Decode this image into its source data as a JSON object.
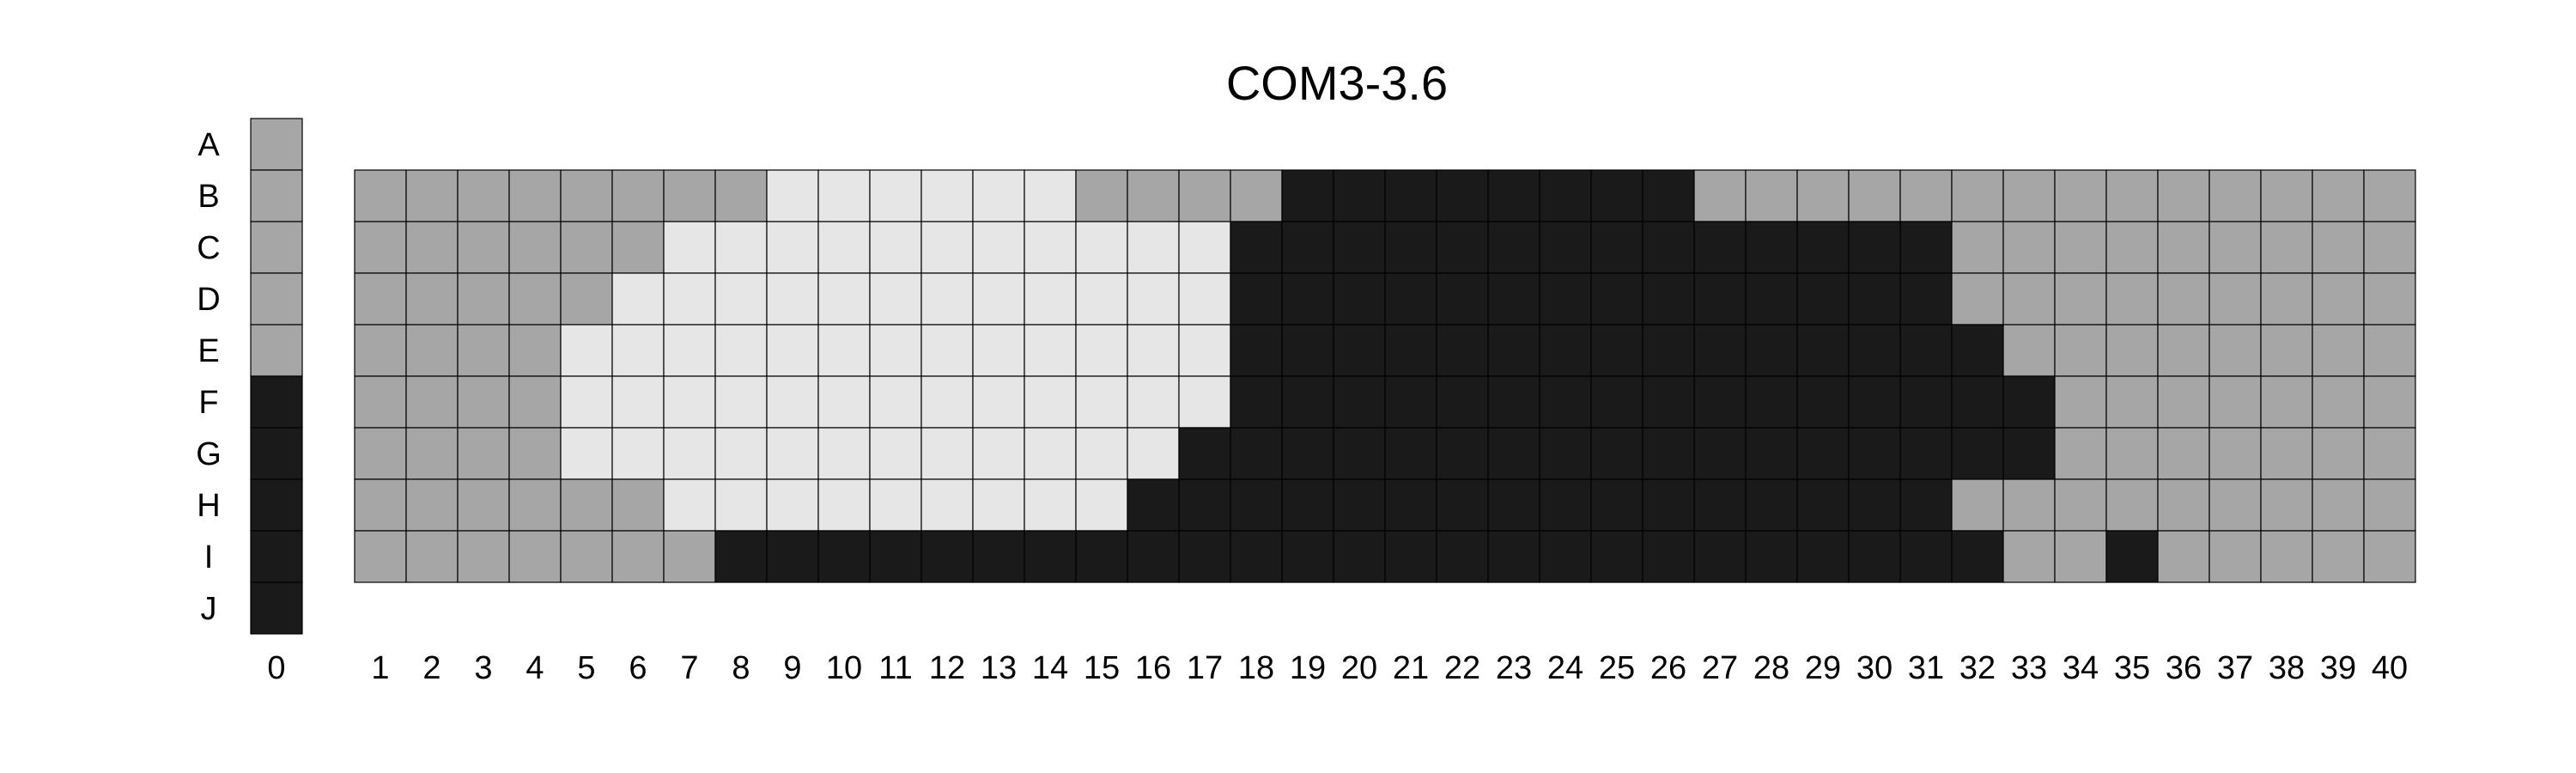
{
  "chart_data": {
    "type": "heatmap",
    "title": "COM3-3.6",
    "rows": [
      "A",
      "B",
      "C",
      "D",
      "E",
      "F",
      "G",
      "H",
      "I",
      "J"
    ],
    "columns": [
      0,
      1,
      2,
      3,
      4,
      5,
      6,
      7,
      8,
      9,
      10,
      11,
      12,
      13,
      14,
      15,
      16,
      17,
      18,
      19,
      20,
      21,
      22,
      23,
      24,
      25,
      26,
      27,
      28,
      29,
      30,
      31,
      32,
      33,
      34,
      35,
      36,
      37,
      38,
      39,
      40
    ],
    "levels": {
      "M": "#a6a6a6",
      "L": "#e6e6e6",
      "D": "#1a1a1a"
    },
    "column0": [
      "M",
      "M",
      "M",
      "M",
      "M",
      "D",
      "D",
      "D",
      "D",
      "D"
    ],
    "grid_rows": [
      "B",
      "C",
      "D",
      "E",
      "F",
      "G",
      "H",
      "I"
    ],
    "grid": [
      "MMMMMMMMLLLLLLMMMMDDDDDDDDMMMMMMMMMMMMMM",
      "MMMMMMLLLLLLLLLLLDDDDDDDDDDDDDDMMMMMMMMM",
      "MMMMMLLLLLLLLLLLLDDDDDDDDDDDDDDMMMMMMMMM",
      "MMMMLLLLLLLLLLLLLDDDDDDDDDDDDDDDMMMMMMMM",
      "MMMMLLLLLLLLLLLLLDDDDDDDDDDDDDDDDMMMMMMM",
      "MMMMLLLLLLLLLLLLDDDDDDDDDDDDDDDDDMMMMMMM",
      "MMMMMMLLLLLLLLLDDDDDDDDDDDDDDDDMMMMMMMMM",
      "MMMMMMMDDDDDDDDDDDDDDDDDDDDDDDDDMMDMMMMM"
    ]
  }
}
